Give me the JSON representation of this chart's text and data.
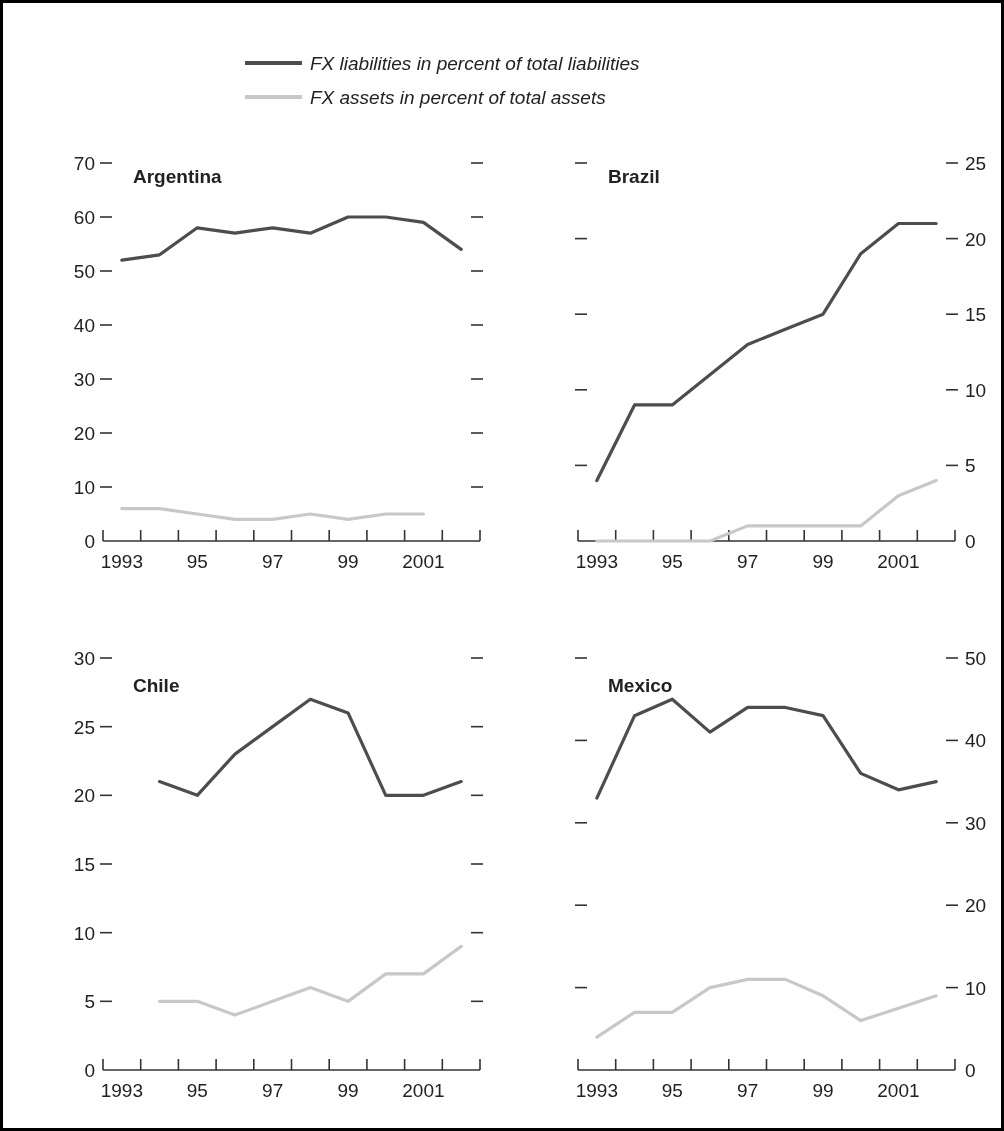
{
  "chart_data": [
    {
      "type": "line",
      "title": "Argentina",
      "legend": "top",
      "x": [
        1993,
        1994,
        1995,
        1996,
        1997,
        1998,
        1999,
        2000,
        2001,
        2002
      ],
      "xlim": [
        1992.5,
        2002.5
      ],
      "xticks": [
        {
          "value": 1992.5,
          "label": null
        },
        {
          "value": 1993,
          "label": "1993"
        },
        {
          "value": 1993.5,
          "label": null
        },
        {
          "value": 1994.5,
          "label": null
        },
        {
          "value": 1995,
          "label": "95"
        },
        {
          "value": 1995.5,
          "label": null
        },
        {
          "value": 1996.5,
          "label": null
        },
        {
          "value": 1997,
          "label": "97"
        },
        {
          "value": 1997.5,
          "label": null
        },
        {
          "value": 1998.5,
          "label": null
        },
        {
          "value": 1999,
          "label": "99"
        },
        {
          "value": 1999.5,
          "label": null
        },
        {
          "value": 2000.5,
          "label": null
        },
        {
          "value": 2001,
          "label": "2001"
        },
        {
          "value": 2001.5,
          "label": null
        },
        {
          "value": 2002.5,
          "label": null
        }
      ],
      "ylim": [
        0,
        70
      ],
      "yticks": [
        0,
        10,
        20,
        30,
        40,
        50,
        60,
        70
      ],
      "series": [
        {
          "name": "FX liabilities in percent of total liabilities",
          "color": "#4d4d4d",
          "values": [
            52,
            53,
            58,
            57,
            58,
            57,
            60,
            60,
            59,
            54
          ]
        },
        {
          "name": "FX assets in percent of total assets",
          "color": "#c8c8c8",
          "values": [
            6,
            6,
            5,
            4,
            4,
            5,
            4,
            5,
            5,
            null
          ]
        }
      ]
    },
    {
      "type": "line",
      "title": "Brazil",
      "x": [
        1993,
        1994,
        1995,
        1996,
        1997,
        1998,
        1999,
        2000,
        2001,
        2002
      ],
      "xlim": [
        1992.5,
        2002.5
      ],
      "xticks": [
        {
          "value": 1992.5,
          "label": null
        },
        {
          "value": 1993,
          "label": "1993"
        },
        {
          "value": 1993.5,
          "label": null
        },
        {
          "value": 1994.5,
          "label": null
        },
        {
          "value": 1995,
          "label": "95"
        },
        {
          "value": 1995.5,
          "label": null
        },
        {
          "value": 1996.5,
          "label": null
        },
        {
          "value": 1997,
          "label": "97"
        },
        {
          "value": 1997.5,
          "label": null
        },
        {
          "value": 1998.5,
          "label": null
        },
        {
          "value": 1999,
          "label": "99"
        },
        {
          "value": 1999.5,
          "label": null
        },
        {
          "value": 2000.5,
          "label": null
        },
        {
          "value": 2001,
          "label": "2001"
        },
        {
          "value": 2001.5,
          "label": null
        },
        {
          "value": 2002.5,
          "label": null
        }
      ],
      "y2lim": [
        0,
        25
      ],
      "y2ticks": [
        0,
        5,
        10,
        15,
        20,
        25
      ],
      "series": [
        {
          "color": "#4d4d4d",
          "axis": "y2",
          "values": [
            4,
            9,
            9,
            11,
            13,
            14,
            15,
            19,
            21,
            21
          ]
        },
        {
          "color": "#c8c8c8",
          "axis": "y2",
          "values": [
            0,
            0,
            0,
            0,
            1,
            1,
            1,
            1,
            3,
            4
          ]
        }
      ]
    },
    {
      "type": "line",
      "title": "Chile",
      "x": [
        1994,
        1995,
        1996,
        1997,
        1998,
        1999,
        2000,
        2001,
        2002
      ],
      "xlim": [
        1992.5,
        2002.5
      ],
      "xticks": [
        {
          "value": 1992.5,
          "label": null
        },
        {
          "value": 1993,
          "label": "1993"
        },
        {
          "value": 1993.5,
          "label": null
        },
        {
          "value": 1994.5,
          "label": null
        },
        {
          "value": 1995,
          "label": "95"
        },
        {
          "value": 1995.5,
          "label": null
        },
        {
          "value": 1996.5,
          "label": null
        },
        {
          "value": 1997,
          "label": "97"
        },
        {
          "value": 1997.5,
          "label": null
        },
        {
          "value": 1998.5,
          "label": null
        },
        {
          "value": 1999,
          "label": "99"
        },
        {
          "value": 1999.5,
          "label": null
        },
        {
          "value": 2000.5,
          "label": null
        },
        {
          "value": 2001,
          "label": "2001"
        },
        {
          "value": 2001.5,
          "label": null
        },
        {
          "value": 2002.5,
          "label": null
        }
      ],
      "ylim": [
        0,
        30
      ],
      "yticks": [
        0,
        5,
        10,
        15,
        20,
        25,
        30
      ],
      "series": [
        {
          "color": "#4d4d4d",
          "values": [
            21,
            20,
            23,
            25,
            27,
            26,
            20,
            20,
            21
          ]
        },
        {
          "color": "#c8c8c8",
          "values": [
            5,
            5,
            4,
            5,
            6,
            5,
            7,
            7,
            9
          ]
        }
      ]
    },
    {
      "type": "line",
      "title": "Mexico",
      "x": [
        1993,
        1994,
        1995,
        1996,
        1997,
        1998,
        1999,
        2000,
        2001,
        2002
      ],
      "xlim": [
        1992.5,
        2002.5
      ],
      "xticks": [
        {
          "value": 1992.5,
          "label": null
        },
        {
          "value": 1993,
          "label": "1993"
        },
        {
          "value": 1993.5,
          "label": null
        },
        {
          "value": 1994.5,
          "label": null
        },
        {
          "value": 1995,
          "label": "95"
        },
        {
          "value": 1995.5,
          "label": null
        },
        {
          "value": 1996.5,
          "label": null
        },
        {
          "value": 1997,
          "label": "97"
        },
        {
          "value": 1997.5,
          "label": null
        },
        {
          "value": 1998.5,
          "label": null
        },
        {
          "value": 1999,
          "label": "99"
        },
        {
          "value": 1999.5,
          "label": null
        },
        {
          "value": 2000.5,
          "label": null
        },
        {
          "value": 2001,
          "label": "2001"
        },
        {
          "value": 2001.5,
          "label": null
        },
        {
          "value": 2002.5,
          "label": null
        }
      ],
      "y2lim": [
        0,
        50
      ],
      "y2ticks": [
        0,
        10,
        20,
        30,
        40,
        50
      ],
      "series": [
        {
          "color": "#4d4d4d",
          "axis": "y2",
          "values": [
            33,
            43,
            45,
            41,
            44,
            44,
            43,
            36,
            34,
            35
          ]
        },
        {
          "color": "#c8c8c8",
          "axis": "y2",
          "values": [
            4,
            7,
            7,
            10,
            11,
            11,
            9,
            6,
            7.5,
            9
          ]
        }
      ]
    }
  ]
}
